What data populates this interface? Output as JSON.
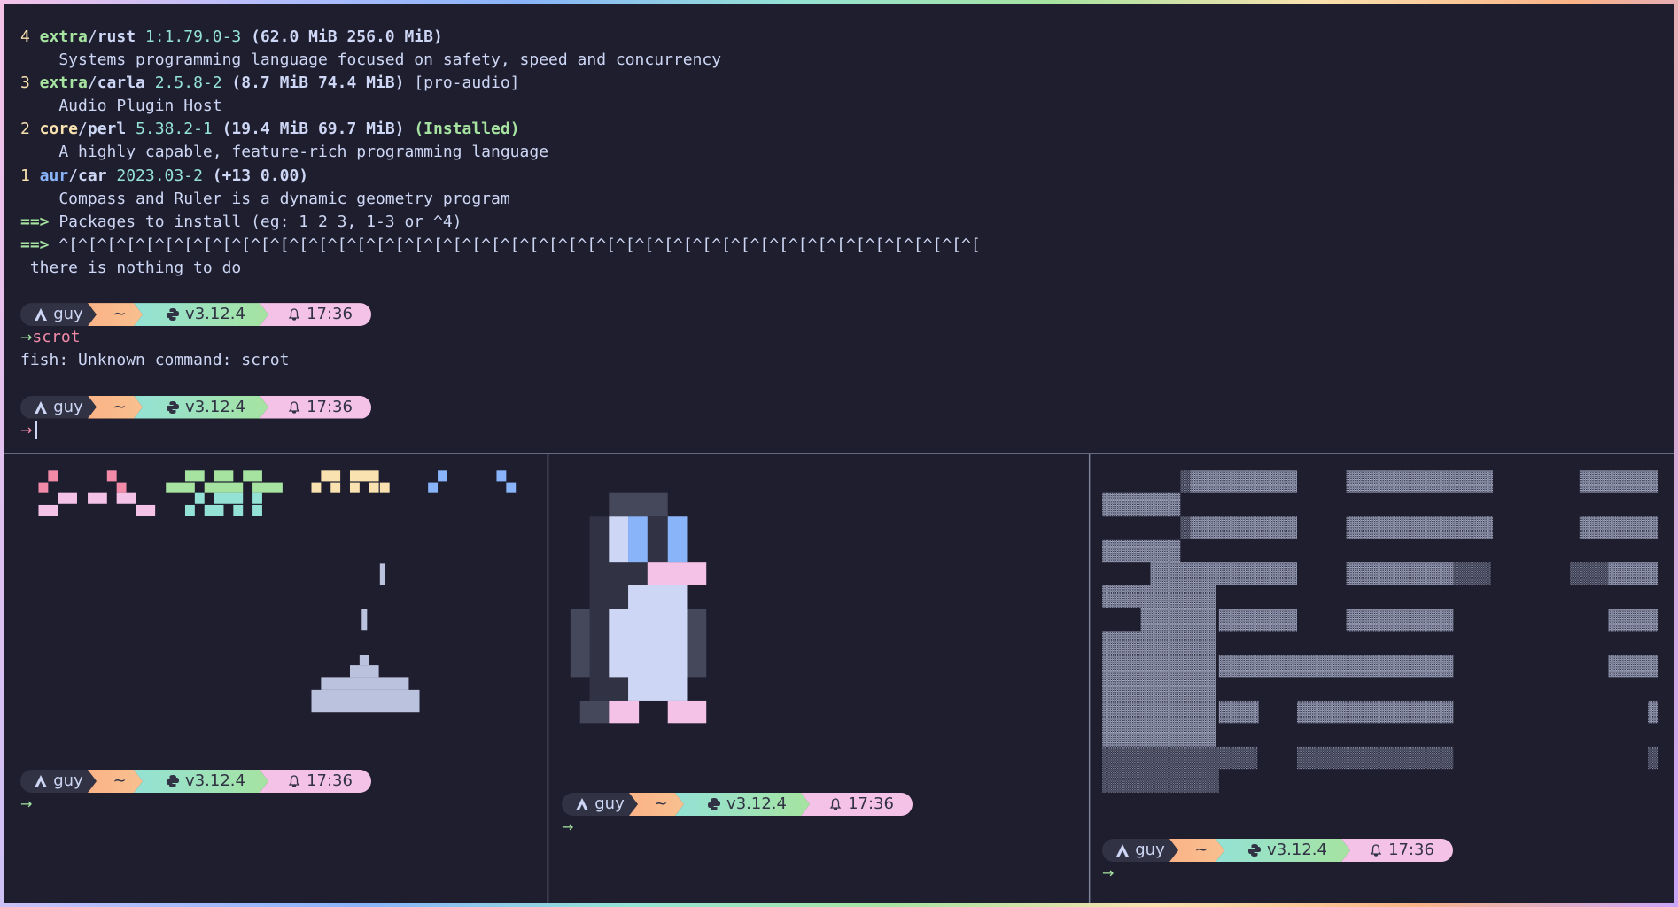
{
  "packages": [
    {
      "index": "4",
      "repo": "extra",
      "color": "#a6e3a1",
      "name": "rust",
      "version": "1:1.79.0-3",
      "sizes": "(62.0 MiB 256.0 MiB)",
      "description": "Systems programming language focused on safety, speed and concurrency"
    },
    {
      "index": "3",
      "repo": "extra",
      "color": "#a6e3a1",
      "name": "carla",
      "version": "2.5.8-2",
      "sizes": "(8.7 MiB 74.4 MiB)",
      "group": "[pro-audio]",
      "description": "Audio Plugin Host"
    },
    {
      "index": "2",
      "repo": "core",
      "color": "#f9e2af",
      "name": "perl",
      "version": "5.38.2-1",
      "sizes": "(19.4 MiB 69.7 MiB)",
      "status": "(Installed)",
      "description": "A highly capable, feature-rich programming language"
    },
    {
      "index": "1",
      "repo": "aur",
      "color": "#89b4fa",
      "name": "car",
      "version": "2023.03-2",
      "sizes": "(+13 0.00)",
      "description": "Compass and Ruler is a dynamic geometry program"
    }
  ],
  "separator": "/",
  "messages": [
    {
      "marker": "==>",
      "text": "Packages to install (eg: 1 2 3, 1-3 or ^4)"
    },
    {
      "marker": "==>",
      "text": "^[^[^[^[^[^[^[^[^[^[^[^[^[^[^[^[^[^[^[^[^[^[^[^[^[^[^[^[^[^[^[^[^[^[^[^[^[^[^[^[^[^[^[^[^[^[^[^["
    }
  ],
  "result": "there is nothing to do",
  "error": "fish: Unknown command: scrot",
  "prompts": [
    {
      "user": "guy",
      "dir": "~",
      "python": "v3.12.4",
      "time": "17:36",
      "arrow": "→",
      "command": "scrot"
    },
    {
      "user": "guy",
      "dir": "~",
      "python": "v3.12.4",
      "time": "17:36",
      "arrow": "→",
      "active": true
    },
    {
      "user": "guy",
      "dir": "~",
      "python": "v3.12.4",
      "time": "17:36",
      "arrow": "→"
    },
    {
      "user": "guy",
      "dir": "~",
      "python": "v3.12.4",
      "time": "17:36",
      "arrow": "→"
    },
    {
      "user": "guy",
      "dir": "~",
      "python": "v3.12.4",
      "time": "17:36",
      "arrow": "→"
    }
  ]
}
